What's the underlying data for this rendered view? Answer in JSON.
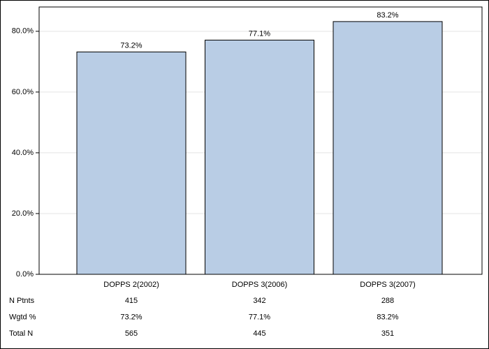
{
  "chart_data": {
    "type": "bar",
    "categories": [
      "DOPPS 2(2002)",
      "DOPPS 3(2006)",
      "DOPPS 3(2007)"
    ],
    "values": [
      73.2,
      77.1,
      83.2
    ],
    "value_labels": [
      "73.2%",
      "77.1%",
      "83.2%"
    ],
    "color": "#b9cde5",
    "ylim": [
      0,
      88
    ],
    "yticks": [
      {
        "value": 0,
        "label": "0.0%"
      },
      {
        "value": 20,
        "label": "20.0%"
      },
      {
        "value": 40,
        "label": "40.0%"
      },
      {
        "value": 60,
        "label": "60.0%"
      },
      {
        "value": 80,
        "label": "80.0%"
      }
    ],
    "grid": true,
    "table": {
      "rows": [
        {
          "label": "N Ptnts",
          "values": [
            415,
            342,
            288
          ]
        },
        {
          "label": "Wgtd %",
          "values": [
            "73.2%",
            "77.1%",
            "83.2%"
          ]
        },
        {
          "label": "Total N",
          "values": [
            565,
            445,
            351
          ]
        }
      ]
    }
  }
}
